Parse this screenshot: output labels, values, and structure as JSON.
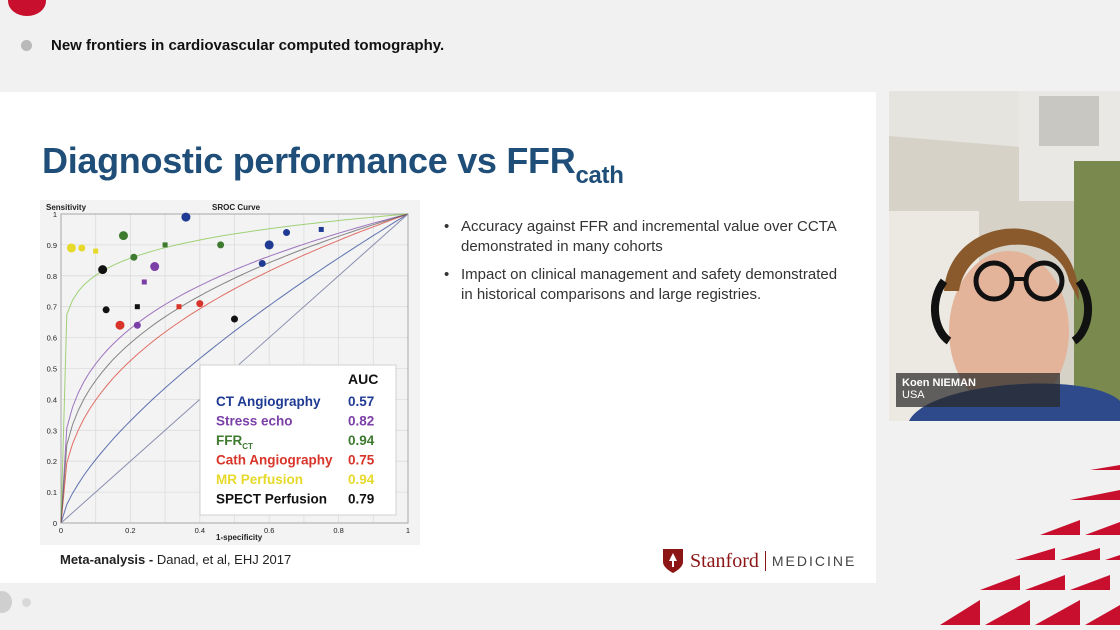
{
  "session": {
    "title": "New frontiers in cardiovascular computed tomography."
  },
  "slide": {
    "title": "Diagnostic performance vs FFR",
    "title_sub": "cath",
    "bullets": [
      "Accuracy against FFR and incremental value over CCTA demonstrated in many cohorts",
      "Impact on clinical management and safety demonstrated in historical comparisons and large registries."
    ],
    "citation_bold": "Meta-analysis - ",
    "citation_rest": "Danad, et al, EHJ 2017",
    "logo": {
      "name": "Stanford",
      "sub": "MEDICINE",
      "color": "#8c1515"
    }
  },
  "video": {
    "speaker_name": "Koen NIEMAN",
    "speaker_country": "USA"
  },
  "chart_data": {
    "type": "scatter",
    "title": "SROC Curve",
    "ylabel": "Sensitivity",
    "xlabel": "1-specificity",
    "xlim": [
      0,
      1
    ],
    "ylim": [
      0,
      1
    ],
    "x_ticks": [
      "0",
      "0.2",
      "0.4",
      "0.6",
      "0.8",
      "1"
    ],
    "y_ticks": [
      "0",
      "0.1",
      "0.2",
      "0.3",
      "0.4",
      "0.5",
      "0.6",
      "0.7",
      "0.8",
      "0.9",
      "1"
    ],
    "grid": true,
    "legend_header": "AUC",
    "legend": [
      {
        "name": "CT Angiography",
        "auc": "0.57",
        "color": "#1f3a93"
      },
      {
        "name": "Stress echo",
        "auc": "0.82",
        "color": "#7b3fa8"
      },
      {
        "name": "FFR",
        "name_sub": "CT",
        "auc": "0.94",
        "color": "#3e7a2f"
      },
      {
        "name": "Cath Angiography",
        "auc": "0.75",
        "color": "#d8342a"
      },
      {
        "name": "MR Perfusion",
        "auc": "0.94",
        "color": "#e6d92a"
      },
      {
        "name": "SPECT Perfusion",
        "auc": "0.79",
        "color": "#111111"
      }
    ],
    "series": [
      {
        "color": "#1f3a93",
        "points": [
          [
            0.36,
            0.99
          ],
          [
            0.65,
            0.94
          ],
          [
            0.75,
            0.95
          ],
          [
            0.58,
            0.84
          ],
          [
            0.6,
            0.9
          ]
        ]
      },
      {
        "color": "#7b3fa8",
        "points": [
          [
            0.27,
            0.83
          ],
          [
            0.22,
            0.64
          ],
          [
            0.24,
            0.78
          ]
        ]
      },
      {
        "color": "#3e7a2f",
        "points": [
          [
            0.18,
            0.93
          ],
          [
            0.21,
            0.86
          ],
          [
            0.3,
            0.9
          ],
          [
            0.46,
            0.9
          ]
        ]
      },
      {
        "color": "#d8342a",
        "points": [
          [
            0.17,
            0.64
          ],
          [
            0.4,
            0.71
          ],
          [
            0.34,
            0.7
          ]
        ]
      },
      {
        "color": "#e6d92a",
        "points": [
          [
            0.03,
            0.89
          ],
          [
            0.06,
            0.89
          ],
          [
            0.1,
            0.88
          ]
        ]
      },
      {
        "color": "#111111",
        "points": [
          [
            0.12,
            0.82
          ],
          [
            0.13,
            0.69
          ],
          [
            0.22,
            0.7
          ],
          [
            0.5,
            0.66
          ]
        ]
      }
    ]
  }
}
